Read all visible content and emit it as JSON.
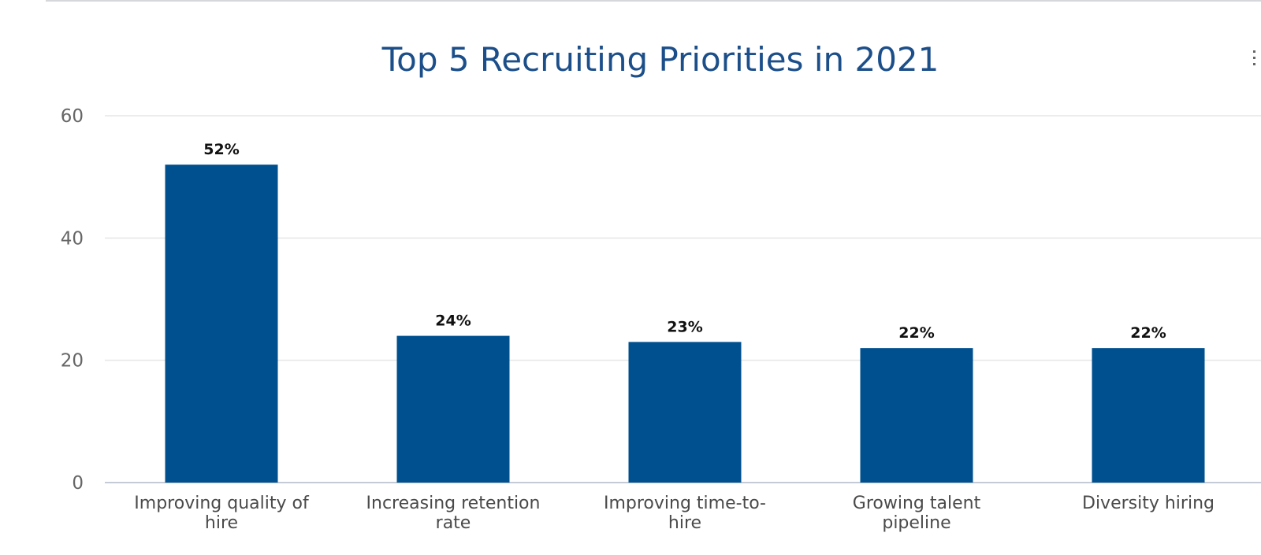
{
  "chart_data": {
    "type": "bar",
    "title": "Top 5 Recruiting Priorities in 2021",
    "xlabel": "",
    "ylabel": "",
    "categories": [
      [
        "Improving quality of",
        "hire"
      ],
      [
        "Increasing retention",
        "rate"
      ],
      [
        "Improving time-to-",
        "hire"
      ],
      [
        "Growing talent",
        "pipeline"
      ],
      [
        "Diversity hiring"
      ]
    ],
    "values": [
      52,
      24,
      23,
      22,
      22
    ],
    "data_labels": [
      "52%",
      "24%",
      "23%",
      "22%",
      "22%"
    ],
    "ylim": [
      0,
      60
    ],
    "yticks": [
      0,
      20,
      40,
      60
    ],
    "grid": true,
    "bar_color": "#00508f",
    "title_color": "#1c4f8a"
  }
}
